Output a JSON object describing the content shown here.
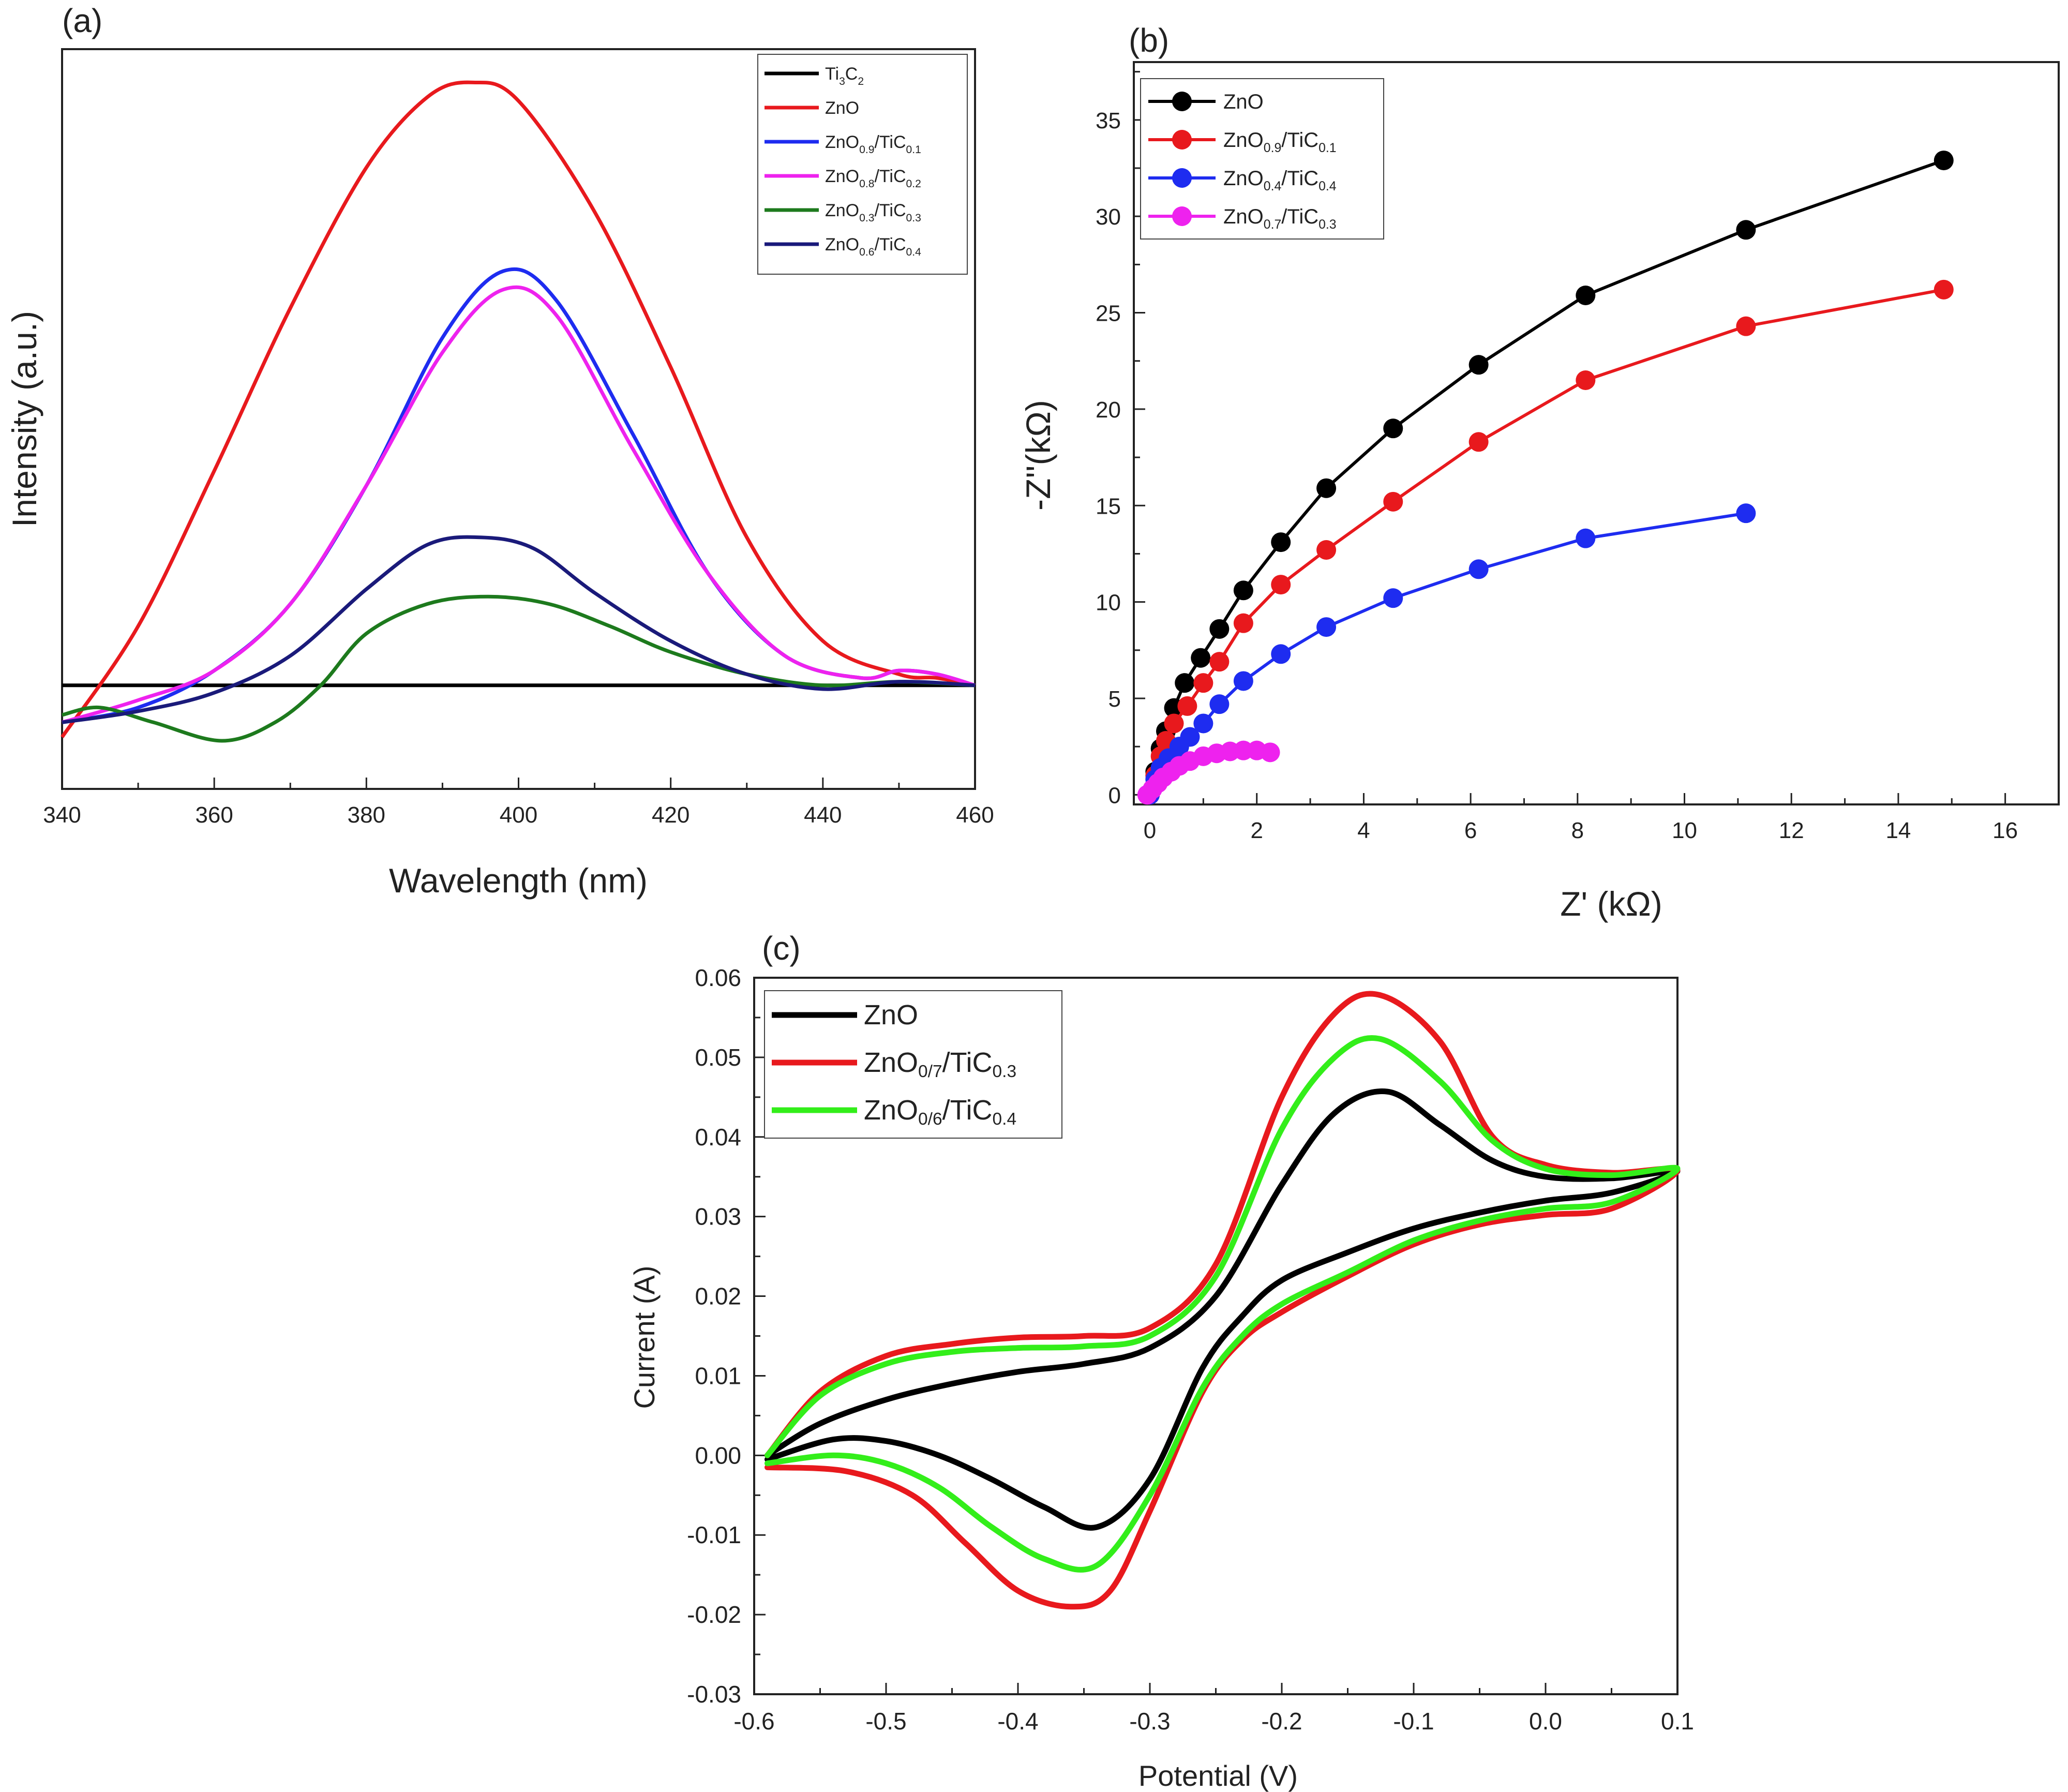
{
  "chart_data": [
    {
      "panel": "(a)",
      "type": "line",
      "title": "",
      "xlabel": "Wavelength (nm)",
      "ylabel": "Intensity (a.u.)",
      "xlim": [
        340,
        460
      ],
      "ylim": [
        0,
        100
      ],
      "xticks": [
        "340",
        "360",
        "380",
        "400",
        "420",
        "440",
        "460"
      ],
      "y_tick_labels": "none",
      "legend_position": "top-right",
      "series": [
        {
          "name": "Ti3C2",
          "legend": {
            "base": "Ti",
            "sub1": "3",
            "mid": "C",
            "sub2": "2"
          },
          "color": "#000000",
          "x": [
            340,
            460
          ],
          "y": [
            14,
            14
          ]
        },
        {
          "name": "ZnO",
          "legend": {
            "base": "ZnO",
            "sub1": "",
            "mid": "",
            "sub2": ""
          },
          "color": "#e8191d",
          "x": [
            340,
            350,
            360,
            370,
            380,
            388,
            394,
            400,
            410,
            420,
            430,
            440,
            450,
            455,
            460
          ],
          "y": [
            7,
            22,
            43,
            65,
            84,
            93.5,
            95.5,
            93,
            78,
            57,
            34,
            20,
            15.5,
            15,
            14
          ]
        },
        {
          "name": "ZnO0.9/TiC0.1",
          "legend": {
            "base": "ZnO",
            "sub1": "0.9",
            "mid": "/TiC",
            "sub2": "0.1"
          },
          "color": "#1e2cf0",
          "x": [
            340,
            350,
            360,
            370,
            380,
            390,
            398,
            405,
            415,
            425,
            435,
            445,
            450,
            455,
            460
          ],
          "y": [
            9,
            11,
            16,
            25,
            41,
            61,
            70,
            66,
            48,
            29,
            18,
            15,
            16,
            15.5,
            14
          ]
        },
        {
          "name": "ZnO0.8/TiC0.2",
          "legend": {
            "base": "ZnO",
            "sub1": "0.8",
            "mid": "/TiC",
            "sub2": "0.2"
          },
          "color": "#ee22ee",
          "x": [
            340,
            350,
            360,
            370,
            380,
            390,
            398,
            405,
            415,
            425,
            435,
            445,
            450,
            455,
            460
          ],
          "y": [
            9,
            12,
            16,
            25,
            41,
            59,
            67.5,
            64,
            46,
            29,
            18,
            15,
            16,
            15.5,
            14
          ]
        },
        {
          "name": "ZnO0.3/TiC0.3",
          "legend": {
            "base": "ZnO",
            "sub1": "0.3",
            "mid": "/TiC",
            "sub2": "0.3"
          },
          "color": "#1d7a1d",
          "x": [
            340,
            345,
            352,
            361,
            368,
            374,
            380,
            388,
            396,
            404,
            412,
            420,
            430,
            440,
            450,
            460
          ],
          "y": [
            10,
            11,
            9,
            6.5,
            9,
            14,
            21,
            25,
            26,
            25,
            22,
            18.5,
            15.5,
            14,
            14.5,
            14
          ]
        },
        {
          "name": "ZnO0.6/TiC0.4",
          "legend": {
            "base": "ZnO",
            "sub1": "0.6",
            "mid": "/TiC",
            "sub2": "0.4"
          },
          "color": "#1a1a7a",
          "x": [
            340,
            350,
            360,
            370,
            380,
            388,
            395,
            402,
            410,
            420,
            430,
            440,
            450,
            460
          ],
          "y": [
            9,
            10.5,
            13,
            18,
            27,
            33,
            34,
            32.5,
            26.5,
            20,
            15.5,
            13.5,
            14.5,
            14
          ]
        }
      ]
    },
    {
      "panel": "(b)",
      "type": "line",
      "title": "",
      "xlabel": "Z' (kΩ)",
      "ylabel": "-Z''(kΩ)",
      "xlim": [
        -0.3,
        17
      ],
      "ylim": [
        -0.5,
        38
      ],
      "xticks": [
        "0",
        "2",
        "4",
        "6",
        "8",
        "10",
        "12",
        "14",
        "16"
      ],
      "yticks": [
        "0",
        "5",
        "10",
        "15",
        "20",
        "25",
        "30",
        "35"
      ],
      "legend_position": "top-left",
      "series": [
        {
          "name": "ZnO",
          "legend": {
            "base": "ZnO",
            "sub1": "",
            "mid": "",
            "sub2": ""
          },
          "color": "#000000",
          "x": [
            0,
            0.1,
            0.2,
            0.3,
            0.45,
            0.65,
            0.95,
            1.3,
            1.75,
            2.45,
            3.3,
            4.55,
            6.15,
            8.15,
            11.15,
            14.85
          ],
          "y": [
            0,
            1.2,
            2.4,
            3.3,
            4.5,
            5.8,
            7.1,
            8.6,
            10.6,
            13.1,
            15.9,
            19.0,
            22.3,
            25.9,
            29.3,
            32.9
          ]
        },
        {
          "name": "ZnO0.9/TiC0.1",
          "legend": {
            "base": "ZnO",
            "sub1": "0.9",
            "mid": "/TiC",
            "sub2": "0.1"
          },
          "color": "#e8191d",
          "x": [
            0,
            0.1,
            0.2,
            0.3,
            0.45,
            0.7,
            1.0,
            1.3,
            1.75,
            2.45,
            3.3,
            4.55,
            6.15,
            8.15,
            11.15,
            14.85
          ],
          "y": [
            0,
            1.0,
            2.0,
            2.8,
            3.7,
            4.6,
            5.8,
            6.9,
            8.9,
            10.9,
            12.7,
            15.2,
            18.3,
            21.5,
            24.3,
            26.2
          ]
        },
        {
          "name": "ZnO0.4/TiC0.4",
          "legend": {
            "base": "ZnO",
            "sub1": "0.4",
            "mid": "/TiC",
            "sub2": "0.4"
          },
          "color": "#1e2cf0",
          "x": [
            0,
            0.1,
            0.2,
            0.35,
            0.55,
            0.75,
            1.0,
            1.3,
            1.75,
            2.45,
            3.3,
            4.55,
            6.15,
            8.15,
            11.15
          ],
          "y": [
            0,
            0.8,
            1.4,
            1.9,
            2.5,
            3.0,
            3.7,
            4.7,
            5.9,
            7.3,
            8.7,
            10.2,
            11.7,
            13.3,
            14.6
          ]
        },
        {
          "name": "ZnO0.7/TiC0.3",
          "legend": {
            "base": "ZnO",
            "sub1": "0.7",
            "mid": "/TiC",
            "sub2": "0.3"
          },
          "color": "#ee22ee",
          "x": [
            -0.05,
            0.05,
            0.15,
            0.25,
            0.4,
            0.55,
            0.75,
            1.0,
            1.25,
            1.5,
            1.75,
            2.0,
            2.25
          ],
          "y": [
            0,
            0.3,
            0.6,
            0.9,
            1.2,
            1.5,
            1.75,
            2.0,
            2.15,
            2.25,
            2.3,
            2.3,
            2.2
          ]
        }
      ]
    },
    {
      "panel": "(c)",
      "type": "line",
      "title": "",
      "xlabel": "Potential (V)",
      "ylabel": "Current (A)",
      "xlim": [
        -0.6,
        0.1
      ],
      "ylim": [
        -0.03,
        0.06
      ],
      "xticks": [
        "-0.6",
        "-0.5",
        "-0.4",
        "-0.3",
        "-0.2",
        "-0.1",
        "0.0",
        "0.1"
      ],
      "yticks": [
        "-0.03",
        "-0.02",
        "-0.01",
        "0.00",
        "0.01",
        "0.02",
        "0.03",
        "0.04",
        "0.05",
        "0.06"
      ],
      "legend_position": "top-left",
      "series": [
        {
          "name": "ZnO",
          "legend": {
            "base": "ZnO",
            "sub1": "",
            "mid": "",
            "sub2": ""
          },
          "color": "#000000",
          "x": [
            -0.59,
            -0.55,
            -0.5,
            -0.45,
            -0.4,
            -0.35,
            -0.3,
            -0.25,
            -0.2,
            -0.16,
            -0.12,
            -0.08,
            -0.04,
            0.0,
            0.05,
            0.1,
            0.05,
            0.0,
            -0.05,
            -0.1,
            -0.15,
            -0.2,
            -0.23,
            -0.26,
            -0.3,
            -0.34,
            -0.38,
            -0.42,
            -0.46,
            -0.5,
            -0.54,
            -0.59
          ],
          "y": [
            0.0,
            0.004,
            0.007,
            0.009,
            0.0105,
            0.0115,
            0.0135,
            0.02,
            0.034,
            0.043,
            0.0457,
            0.0415,
            0.037,
            0.035,
            0.0348,
            0.0357,
            0.033,
            0.032,
            0.0305,
            0.0285,
            0.0255,
            0.022,
            0.0175,
            0.011,
            -0.003,
            -0.009,
            -0.0065,
            -0.003,
            0.0,
            0.0018,
            0.002,
            -0.0005
          ]
        },
        {
          "name": "ZnO0/7/TiC0.3",
          "legend": {
            "base": "ZnO",
            "sub1": "0/7",
            "mid": "/TiC",
            "sub2": "0.3"
          },
          "color": "#e8191d",
          "x": [
            -0.59,
            -0.55,
            -0.5,
            -0.45,
            -0.4,
            -0.35,
            -0.3,
            -0.25,
            -0.2,
            -0.16,
            -0.125,
            -0.08,
            -0.04,
            0.0,
            0.05,
            0.1,
            0.05,
            0.0,
            -0.05,
            -0.1,
            -0.15,
            -0.2,
            -0.23,
            -0.26,
            -0.3,
            -0.33,
            -0.36,
            -0.4,
            -0.44,
            -0.48,
            -0.53,
            -0.59
          ],
          "y": [
            0.0,
            0.008,
            0.0125,
            0.014,
            0.0148,
            0.015,
            0.016,
            0.024,
            0.045,
            0.0555,
            0.0578,
            0.052,
            0.04,
            0.0365,
            0.0355,
            0.0358,
            0.031,
            0.0302,
            0.029,
            0.0265,
            0.0225,
            0.018,
            0.0145,
            0.008,
            -0.007,
            -0.017,
            -0.019,
            -0.017,
            -0.011,
            -0.005,
            -0.002,
            -0.0015
          ]
        },
        {
          "name": "ZnO0/6/TiC0.4",
          "legend": {
            "base": "ZnO",
            "sub1": "0/6",
            "mid": "/TiC",
            "sub2": "0.4"
          },
          "color": "#33ee1a",
          "x": [
            -0.59,
            -0.55,
            -0.5,
            -0.45,
            -0.4,
            -0.35,
            -0.3,
            -0.25,
            -0.2,
            -0.16,
            -0.125,
            -0.08,
            -0.04,
            0.0,
            0.05,
            0.1,
            0.05,
            0.0,
            -0.05,
            -0.1,
            -0.15,
            -0.2,
            -0.23,
            -0.26,
            -0.3,
            -0.34,
            -0.38,
            -0.42,
            -0.46,
            -0.5,
            -0.54,
            -0.59
          ],
          "y": [
            0.0,
            0.0075,
            0.0115,
            0.013,
            0.0135,
            0.0137,
            0.015,
            0.0225,
            0.041,
            0.05,
            0.0523,
            0.047,
            0.0395,
            0.036,
            0.0352,
            0.036,
            0.0318,
            0.031,
            0.0295,
            0.027,
            0.023,
            0.019,
            0.015,
            0.0085,
            -0.005,
            -0.0138,
            -0.013,
            -0.009,
            -0.004,
            -0.001,
            0.0,
            -0.001
          ]
        }
      ]
    }
  ]
}
